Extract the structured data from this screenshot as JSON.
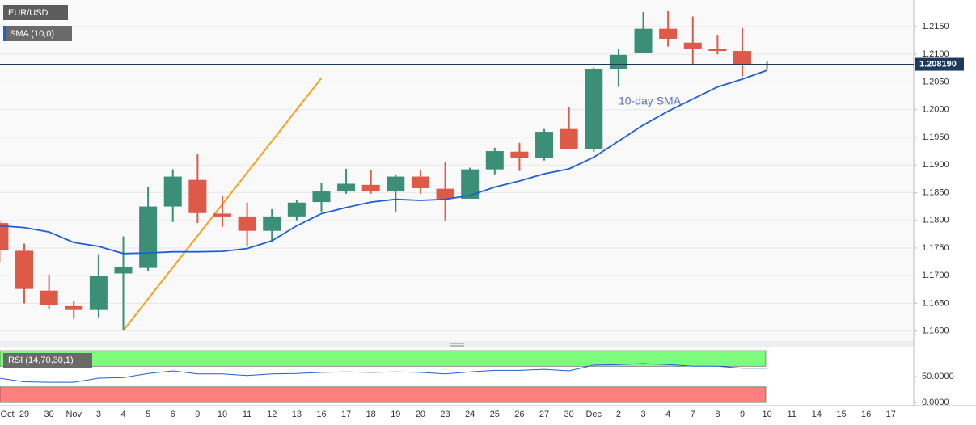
{
  "chart_data": {
    "type": "candlestick",
    "title": "EUR/USD",
    "categories": [
      "Oct",
      "29",
      "30",
      "Nov",
      "3",
      "4",
      "5",
      "6",
      "9",
      "10",
      "11",
      "12",
      "13",
      "16",
      "17",
      "18",
      "19",
      "20",
      "23",
      "24",
      "25",
      "26",
      "27",
      "30",
      "Dec",
      "2",
      "3",
      "4",
      "7",
      "8",
      "9",
      "10",
      "11",
      "14",
      "15",
      "16",
      "17"
    ],
    "open": [
      1.1795,
      1.1745,
      1.1673,
      1.1645,
      1.1638,
      1.1704,
      1.1714,
      1.1825,
      1.1873,
      1.1812,
      1.1807,
      1.1781,
      1.1807,
      1.1833,
      1.1852,
      1.1864,
      1.1852,
      1.1879,
      1.1857,
      1.1839,
      1.1892,
      1.1924,
      1.1912,
      1.1965,
      1.1928,
      1.2073,
      1.2103,
      1.2146,
      1.2121,
      1.2109,
      1.2106,
      1.208,
      null,
      null,
      null,
      null,
      null
    ],
    "high": [
      1.18,
      1.1758,
      1.1702,
      1.1654,
      1.1739,
      1.1771,
      1.186,
      1.1892,
      1.192,
      1.1844,
      1.1832,
      1.182,
      1.1836,
      1.1867,
      1.1893,
      1.189,
      1.1882,
      1.189,
      1.1905,
      1.1895,
      1.1931,
      1.194,
      1.1965,
      1.2004,
      1.2076,
      1.2109,
      1.2176,
      1.2178,
      1.2168,
      1.2135,
      1.2147,
      1.2087,
      null,
      null,
      null,
      null,
      null
    ],
    "low": [
      1.1725,
      1.165,
      1.164,
      1.1622,
      1.1625,
      1.1601,
      1.1709,
      1.1797,
      1.1795,
      1.1788,
      1.1753,
      1.176,
      1.18,
      1.1816,
      1.1848,
      1.1848,
      1.1816,
      1.1848,
      1.18,
      1.1839,
      1.1883,
      1.1889,
      1.1908,
      1.1928,
      1.1924,
      1.2041,
      1.2103,
      1.2114,
      1.208,
      1.21,
      1.206,
      1.2073,
      null,
      null,
      null,
      null,
      null
    ],
    "close": [
      1.1746,
      1.1676,
      1.1647,
      1.1638,
      1.17,
      1.1715,
      1.1825,
      1.1879,
      1.1813,
      1.1807,
      1.1781,
      1.1807,
      1.1832,
      1.1852,
      1.1866,
      1.1852,
      1.1879,
      1.1858,
      1.1839,
      1.1892,
      1.1925,
      1.1912,
      1.196,
      1.1928,
      1.2073,
      1.2099,
      1.2146,
      1.2128,
      1.2109,
      1.2106,
      1.2081,
      1.2082,
      null,
      null,
      null,
      null,
      null
    ],
    "up_color": "#3a8f76",
    "down_color": "#de5a48",
    "sma": {
      "name": "SMA (10,0)",
      "color": "#1f5fd6",
      "values": [
        1.179,
        1.1787,
        1.1779,
        1.176,
        1.1753,
        1.174,
        1.1741,
        1.1743,
        1.1743,
        1.1744,
        1.1749,
        1.1763,
        1.179,
        1.1812,
        1.1823,
        1.1833,
        1.1838,
        1.1836,
        1.1838,
        1.1845,
        1.186,
        1.1871,
        1.1884,
        1.1893,
        1.1914,
        1.1943,
        1.1972,
        1.1997,
        1.2019,
        1.2041,
        1.2055,
        1.2071,
        null,
        null,
        null,
        null,
        null
      ]
    },
    "sma_annotation": "10-day SMA",
    "trendline": {
      "x": [
        "4",
        "16"
      ],
      "values": [
        1.1601,
        1.2057
      ],
      "color": "#f5a11c"
    },
    "last_price": {
      "value": 1.20819,
      "label": "1.208190",
      "color": "#1c3a5e"
    },
    "ylim": [
      1.1585,
      1.2198
    ],
    "yticks": [
      {
        "value": 1.16,
        "label": "1.1600"
      },
      {
        "value": 1.165,
        "label": "1.1650"
      },
      {
        "value": 1.17,
        "label": "1.1700"
      },
      {
        "value": 1.175,
        "label": "1.1750"
      },
      {
        "value": 1.18,
        "label": "1.1800"
      },
      {
        "value": 1.185,
        "label": "1.1850"
      },
      {
        "value": 1.19,
        "label": "1.1900"
      },
      {
        "value": 1.195,
        "label": "1.1950"
      },
      {
        "value": 1.2,
        "label": "1.2000"
      },
      {
        "value": 1.205,
        "label": "1.2050"
      },
      {
        "value": 1.21,
        "label": "1.2100"
      },
      {
        "value": 1.215,
        "label": "1.2150"
      }
    ],
    "grid": true,
    "rsi": {
      "name": "RSI (14,70,30,1)",
      "color": "#1f5fd6",
      "values": [
        47,
        40,
        39,
        39,
        47,
        48,
        56,
        61,
        55,
        55,
        52,
        55,
        56,
        58,
        59,
        58,
        59,
        58,
        55,
        59,
        62,
        62,
        64,
        61,
        72,
        73,
        75,
        73,
        70,
        70,
        66,
        66,
        null,
        null,
        null,
        null,
        null
      ],
      "ylim": [
        -3,
        104.7
      ],
      "yticks": [
        {
          "value": 0,
          "label": "0.0000"
        },
        {
          "value": 50,
          "label": "50.0000"
        }
      ],
      "bands": [
        {
          "range": [
            70,
            100
          ],
          "color": "#7dfc7d"
        },
        {
          "range": [
            0,
            30
          ],
          "color": "#ff7f7f"
        }
      ]
    }
  }
}
